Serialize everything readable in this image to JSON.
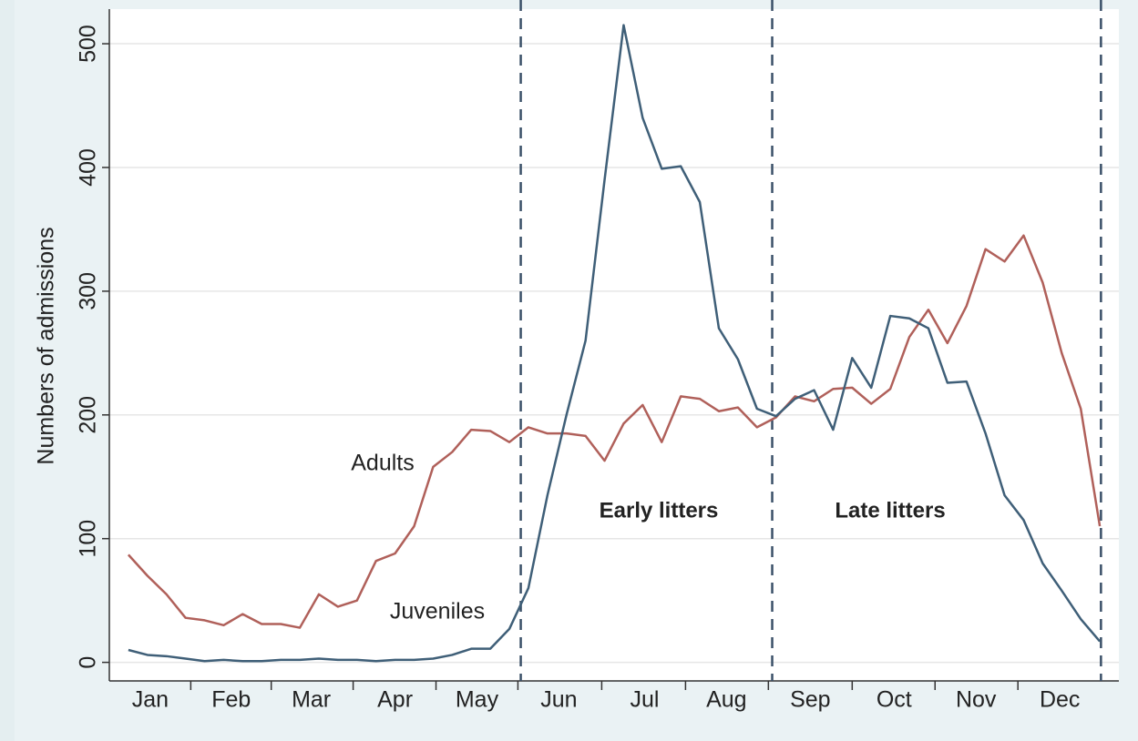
{
  "chart_data": {
    "type": "line",
    "y_label": "Numbers of admissions",
    "x": [
      1,
      2,
      3,
      4,
      5,
      6,
      7,
      8,
      9,
      10,
      11,
      12,
      13,
      14,
      15,
      16,
      17,
      18,
      19,
      20,
      21,
      22,
      23,
      24,
      25,
      26,
      27,
      28,
      29,
      30,
      31,
      32,
      33,
      34,
      35,
      36,
      37,
      38,
      39,
      40,
      41,
      42,
      43,
      44,
      45,
      46,
      47,
      48,
      49,
      50,
      51,
      52
    ],
    "series": [
      {
        "name": "Adults",
        "color": "#b0605a",
        "values": [
          87,
          70,
          55,
          36,
          34,
          30,
          39,
          31,
          31,
          28,
          55,
          45,
          50,
          82,
          88,
          110,
          158,
          170,
          188,
          187,
          178,
          190,
          185,
          185,
          183,
          163,
          193,
          208,
          178,
          215,
          213,
          203,
          206,
          190,
          198,
          215,
          211,
          221,
          222,
          209,
          221,
          263,
          285,
          258,
          288,
          334,
          324,
          345,
          307,
          250,
          205,
          110
        ]
      },
      {
        "name": "Juveniles",
        "color": "#3f5f78",
        "values": [
          10,
          6,
          5,
          3,
          1,
          2,
          1,
          1,
          2,
          2,
          3,
          2,
          2,
          1,
          2,
          2,
          3,
          6,
          11,
          11,
          27,
          60,
          135,
          200,
          260,
          390,
          515,
          440,
          399,
          401,
          372,
          270,
          245,
          205,
          199,
          213,
          220,
          188,
          246,
          222,
          280,
          278,
          270,
          226,
          227,
          185,
          135,
          115,
          80,
          58,
          35,
          17
        ]
      }
    ],
    "annotations": [
      "Early litters",
      "Late litters"
    ],
    "reference_lines": [
      21.6,
      34.8,
      52.06
    ],
    "xlim": [
      0,
      53
    ],
    "ylim": [
      -15,
      528
    ],
    "yticks": [
      0,
      100,
      200,
      300,
      400,
      500
    ],
    "xticks": [
      {
        "value": 2.15,
        "label": "Jan"
      },
      {
        "value": 6.4,
        "label": "Feb"
      },
      {
        "value": 10.6,
        "label": "Mar"
      },
      {
        "value": 15.0,
        "label": "Apr"
      },
      {
        "value": 19.3,
        "label": "May"
      },
      {
        "value": 23.6,
        "label": "Jun"
      },
      {
        "value": 28.1,
        "label": "Jul"
      },
      {
        "value": 32.4,
        "label": "Aug"
      },
      {
        "value": 36.8,
        "label": "Sep"
      },
      {
        "value": 41.2,
        "label": "Oct"
      },
      {
        "value": 45.5,
        "label": "Nov"
      },
      {
        "value": 49.9,
        "label": "Dec"
      }
    ],
    "grid": true
  }
}
